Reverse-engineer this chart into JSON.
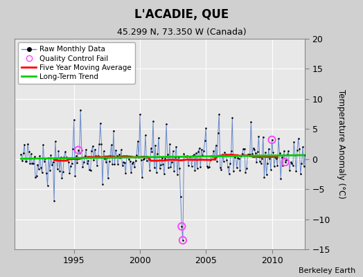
{
  "title": "L'ACADIE, QUE",
  "subtitle": "45.299 N, 73.350 W (Canada)",
  "ylabel": "Temperature Anomaly (°C)",
  "attribution": "Berkeley Earth",
  "ylim": [
    -15,
    20
  ],
  "yticks": [
    -15,
    -10,
    -5,
    0,
    5,
    10,
    15,
    20
  ],
  "xlim_start": 1990.5,
  "xlim_end": 2012.5,
  "xticks": [
    1995,
    2000,
    2005,
    2010
  ],
  "fig_bg_color": "#d0d0d0",
  "plot_bg_color": "#e8e8e8",
  "grid_color": "#ffffff",
  "raw_line_color": "#6688cc",
  "raw_dot_color": "#000000",
  "moving_avg_color": "#ff0000",
  "trend_color": "#00cc00",
  "qc_fail_color": "#ff44ff",
  "legend_raw": "Raw Monthly Data",
  "legend_qc": "Quality Control Fail",
  "legend_mavg": "Five Year Moving Average",
  "legend_trend": "Long-Term Trend",
  "trend_slope": 0.028,
  "trend_intercept_base": 0.05,
  "seed": 42,
  "n_years": 22,
  "start_year": 1991
}
